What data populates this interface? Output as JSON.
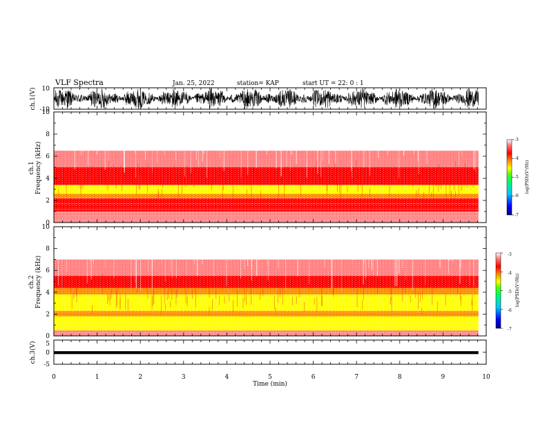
{
  "header": {
    "title": "VLF Spectra",
    "date": "Jan. 25, 2022",
    "station": "station= KAP",
    "start_time": "start  UT =   22: 0  : 1"
  },
  "chart_data": [
    {
      "type": "line",
      "panel": "ch1-waveform",
      "ylabel": "ch.1(V)",
      "ylim": [
        -10,
        10
      ],
      "yticks": [
        "10",
        "-10"
      ],
      "xlim": [
        0,
        10
      ],
      "data_end_min": 9.82,
      "fill_color": "#000000"
    },
    {
      "type": "heatmap",
      "panel": "ch1-spectrogram",
      "ylabel_top": "ch.1",
      "ylabel": "Frequency (kHz)",
      "ylim": [
        0,
        10
      ],
      "yticks": [
        "0",
        "2",
        "4",
        "6",
        "8",
        "10"
      ],
      "xlim": [
        0,
        10
      ],
      "data_end_min": 9.82,
      "bands_khz": [
        {
          "from": 0.0,
          "to": 0.4,
          "level": -3.6
        },
        {
          "from": 0.4,
          "to": 1.0,
          "level": -3.3
        },
        {
          "from": 1.0,
          "to": 1.6,
          "level": -3.7
        },
        {
          "from": 1.6,
          "to": 2.2,
          "level": -4.0
        },
        {
          "from": 2.2,
          "to": 2.6,
          "level": -4.2
        },
        {
          "from": 2.6,
          "to": 3.4,
          "level": -4.6
        },
        {
          "from": 3.4,
          "to": 4.0,
          "level": -4.1
        },
        {
          "from": 4.0,
          "to": 5.0,
          "level": -3.8
        },
        {
          "from": 5.0,
          "to": 6.5,
          "level": -3.5
        },
        {
          "from": 6.5,
          "to": 10.0,
          "level": -3.15
        }
      ],
      "colorbar": {
        "label": "log(PSD)(V²/Hz)",
        "range": [
          -7,
          -3
        ],
        "ticks": [
          "-3",
          "-4",
          "-5",
          "-6",
          "-7"
        ]
      }
    },
    {
      "type": "heatmap",
      "panel": "ch2-spectrogram",
      "ylabel_top": "ch.2",
      "ylabel": "Frequency (kHz)",
      "ylim": [
        0,
        10
      ],
      "yticks": [
        "0",
        "2",
        "4",
        "6",
        "8",
        "10"
      ],
      "xlim": [
        0,
        10
      ],
      "data_end_min": 9.82,
      "bands_khz": [
        {
          "from": 0.0,
          "to": 0.5,
          "level": -3.5
        },
        {
          "from": 0.5,
          "to": 1.8,
          "level": -4.8
        },
        {
          "from": 1.8,
          "to": 2.3,
          "level": -4.3
        },
        {
          "from": 2.3,
          "to": 3.8,
          "level": -4.9
        },
        {
          "from": 3.8,
          "to": 4.4,
          "level": -4.2
        },
        {
          "from": 4.4,
          "to": 5.5,
          "level": -3.8
        },
        {
          "from": 5.5,
          "to": 7.0,
          "level": -3.45
        },
        {
          "from": 7.0,
          "to": 10.0,
          "level": -3.15
        }
      ],
      "colorbar": {
        "label": "log(PSD)(V²/Hz)",
        "range": [
          -7,
          -3
        ],
        "ticks": [
          "-3",
          "-4",
          "-5",
          "-6",
          "-7"
        ]
      }
    },
    {
      "type": "line",
      "panel": "ch3-waveform",
      "ylabel": "ch.3(V)",
      "ylim": [
        -5,
        5
      ],
      "yticks": [
        "5",
        "0",
        "-5"
      ],
      "xlim": [
        0,
        10
      ],
      "data_end_min": 9.82,
      "band": [
        -0.8,
        0.4
      ],
      "fill_color": "#000000"
    }
  ],
  "xaxis": {
    "label": "Time (min)",
    "ticks": [
      "0",
      "1",
      "2",
      "3",
      "4",
      "5",
      "6",
      "7",
      "8",
      "9",
      "10"
    ]
  },
  "colorscale": [
    "#00008c",
    "#0000ff",
    "#00c8ff",
    "#00ff64",
    "#64ff00",
    "#ffff00",
    "#ff8c00",
    "#ff0000",
    "#ff8080",
    "#ffffff"
  ]
}
